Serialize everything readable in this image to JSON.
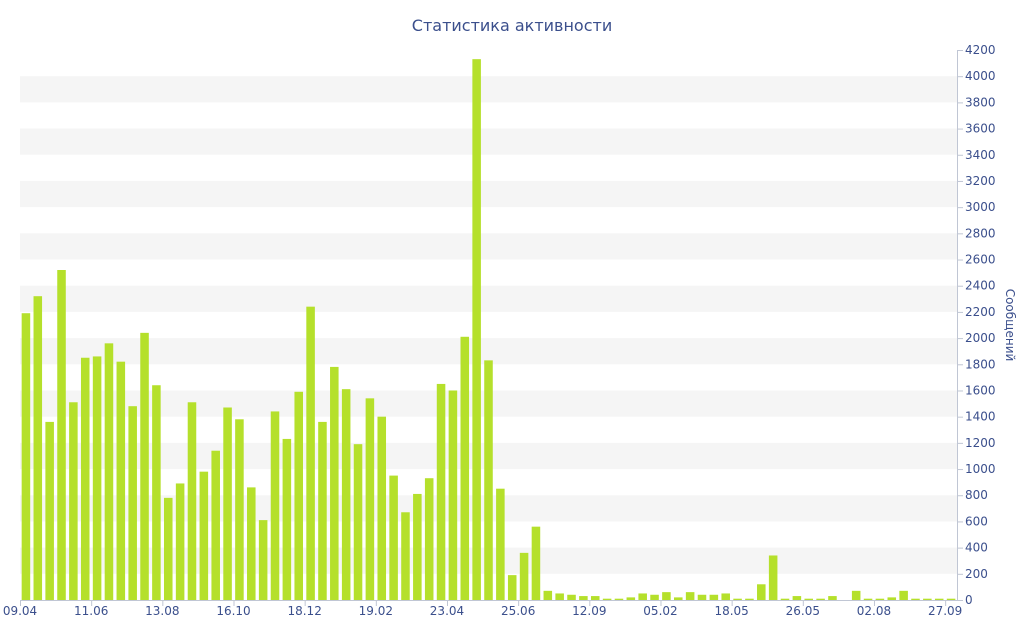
{
  "chart_data": {
    "type": "bar",
    "title": "Статистика активности",
    "ylabel": "Сообщений",
    "ylim": [
      0,
      4200
    ],
    "yticks": [
      0,
      200,
      400,
      600,
      800,
      1000,
      1200,
      1400,
      1600,
      1800,
      2000,
      2200,
      2400,
      2600,
      2800,
      3000,
      3200,
      3400,
      3600,
      3800,
      4000,
      4200
    ],
    "x_tick_labels": [
      "09.04",
      "11.06",
      "13.08",
      "16.10",
      "18.12",
      "19.02",
      "23.04",
      "25.06",
      "12.09",
      "05.02",
      "18.05",
      "26.05",
      "02.08",
      "27.09"
    ],
    "x_tick_positions": [
      0,
      6,
      12,
      18,
      24,
      30,
      36,
      42,
      48,
      54,
      60,
      66,
      72,
      78
    ],
    "values": [
      2190,
      2320,
      1360,
      2520,
      1510,
      1850,
      1860,
      1960,
      1820,
      1480,
      2040,
      1640,
      780,
      890,
      1510,
      980,
      1140,
      1470,
      1380,
      860,
      610,
      1440,
      1230,
      1590,
      2240,
      1360,
      1780,
      1610,
      1190,
      1540,
      1400,
      950,
      670,
      810,
      930,
      1650,
      1600,
      2010,
      4130,
      1830,
      850,
      190,
      360,
      560,
      70,
      50,
      40,
      30,
      30,
      10,
      10,
      20,
      50,
      40,
      60,
      20,
      60,
      40,
      40,
      50,
      10,
      10,
      120,
      340,
      10,
      30,
      10,
      10,
      30,
      0,
      70,
      10,
      10,
      20,
      70,
      10,
      10,
      10,
      10
    ],
    "grid": true,
    "bar_color": "#b5e02b",
    "band_color": "#f5f5f5",
    "text_color": "#3b4f8c"
  }
}
